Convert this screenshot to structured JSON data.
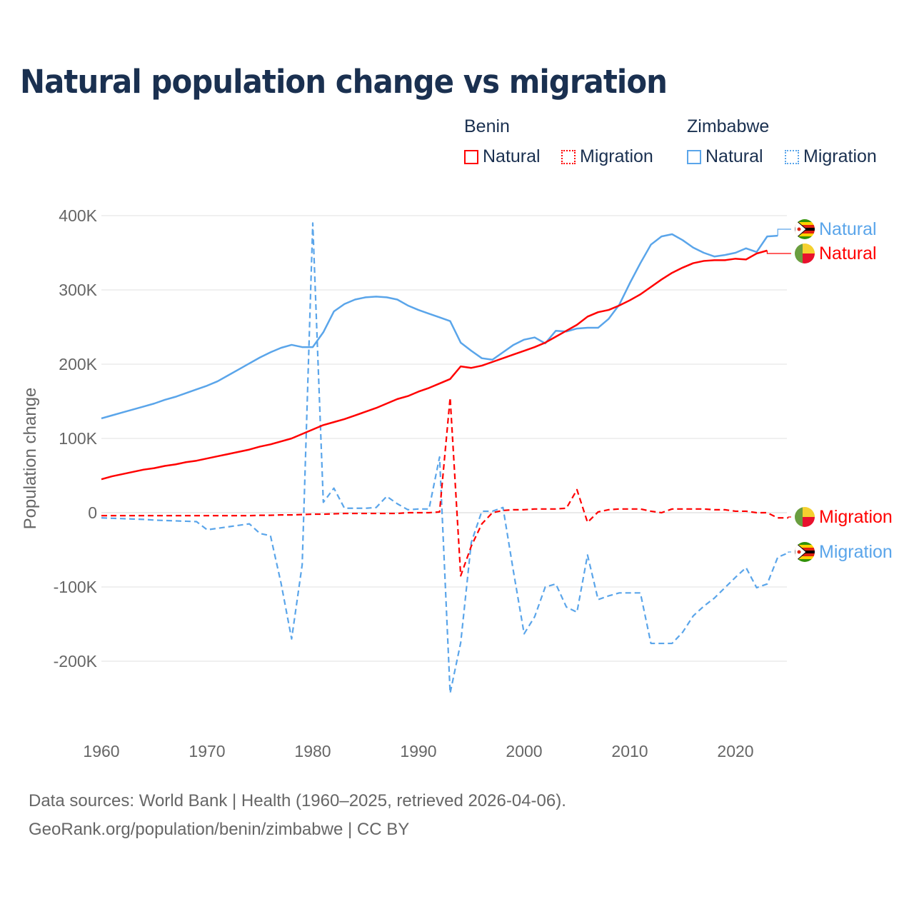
{
  "title": "Natural population change vs migration",
  "legend": {
    "groups": [
      {
        "name": "Benin",
        "items": [
          {
            "label": "Natural",
            "style": "solid",
            "color": "#ff0000"
          },
          {
            "label": "Migration",
            "style": "dotted",
            "color": "#ff0000"
          }
        ]
      },
      {
        "name": "Zimbabwe",
        "items": [
          {
            "label": "Natural",
            "style": "solid",
            "color": "#5aa5ea"
          },
          {
            "label": "Migration",
            "style": "dotted",
            "color": "#5aa5ea"
          }
        ]
      }
    ]
  },
  "footer": {
    "line1": "Data sources: World Bank | Health (1960–2025, retrieved 2026-04-06).",
    "line2": "GeoRank.org/population/benin/zimbabwe | CC BY"
  },
  "chart_data": {
    "type": "line",
    "title": "Natural population change vs migration",
    "xlabel": "",
    "ylabel": "Population change",
    "xlim": [
      1960,
      2025
    ],
    "ylim": [
      -280000,
      400000
    ],
    "x_ticks": [
      1960,
      1970,
      1980,
      1990,
      2000,
      2010,
      2020
    ],
    "x_tick_labels": [
      "1960",
      "1970",
      "1980",
      "1990",
      "2000",
      "2010",
      "2020"
    ],
    "y_ticks": [
      400000,
      300000,
      200000,
      100000,
      0,
      -100000,
      -200000
    ],
    "y_tick_labels": [
      "400K",
      "300K",
      "200K",
      "100K",
      "0",
      "-100K",
      "-200K"
    ],
    "grid": true,
    "legend_position": "top-right",
    "series": [
      {
        "name": "Benin Natural",
        "end_label": "Natural",
        "country": "Benin",
        "color": "#ff0000",
        "dash": false,
        "start_year": 1960,
        "values": [
          45,
          49,
          52,
          55,
          58,
          60,
          63,
          65,
          68,
          70,
          73,
          76,
          79,
          82,
          85,
          89,
          92,
          96,
          100,
          106,
          112,
          118,
          122,
          126,
          131,
          136,
          141,
          147,
          153,
          157,
          163,
          168,
          174,
          180,
          197,
          195,
          198,
          203,
          208,
          213,
          218,
          223,
          229,
          237,
          245,
          253,
          264,
          270,
          273,
          279,
          286,
          294,
          304,
          314,
          323,
          330,
          336,
          339,
          340,
          340,
          342,
          341,
          349,
          353
        ]
      },
      {
        "name": "Zimbabwe Natural",
        "end_label": "Natural",
        "country": "Zimbabwe",
        "color": "#5aa5ea",
        "dash": false,
        "start_year": 1960,
        "values": [
          127,
          131,
          135,
          139,
          143,
          147,
          152,
          156,
          161,
          166,
          171,
          177,
          185,
          193,
          201,
          209,
          216,
          222,
          226,
          223,
          223,
          243,
          271,
          281,
          287,
          290,
          291,
          290,
          287,
          279,
          273,
          268,
          263,
          258,
          229,
          218,
          208,
          206,
          216,
          226,
          233,
          236,
          228,
          245,
          244,
          248,
          249,
          249,
          261,
          280,
          309,
          336,
          361,
          372,
          375,
          367,
          357,
          350,
          345,
          347,
          350,
          356,
          351,
          372,
          373
        ]
      },
      {
        "name": "Benin Migration",
        "end_label": "Migration",
        "country": "Benin",
        "color": "#ff0000",
        "dash": true,
        "start_year": 1960,
        "values": [
          -4,
          -4,
          -4,
          -4,
          -4,
          -4,
          -4,
          -4,
          -4,
          -4,
          -4,
          -4,
          -4,
          -4,
          -4,
          -3.5,
          -3.5,
          -3,
          -3,
          -2.5,
          -2,
          -2,
          -1.5,
          -1,
          -1,
          -1,
          -1,
          -1,
          -1,
          0,
          0,
          0,
          1,
          155,
          -85,
          -45,
          -15,
          0,
          3,
          4,
          4,
          5,
          5,
          5,
          6,
          31,
          -13,
          1,
          4,
          5,
          5,
          5,
          2,
          0,
          5,
          5,
          5,
          5,
          4,
          4,
          2,
          2,
          0,
          0,
          -7,
          -7
        ]
      },
      {
        "name": "Zimbabwe Migration",
        "end_label": "Migration",
        "country": "Zimbabwe",
        "color": "#5aa5ea",
        "dash": true,
        "start_year": 1960,
        "values": [
          -7,
          -7.5,
          -8,
          -8.5,
          -9,
          -10,
          -10.5,
          -11,
          -11.5,
          -12,
          -23,
          -21,
          -19,
          -17,
          -15,
          -28,
          -31,
          -95,
          -170,
          -70,
          390,
          14,
          33,
          6,
          6,
          6,
          7,
          22,
          12,
          4,
          5,
          5,
          75,
          -243,
          -175,
          -40,
          2,
          2,
          7,
          -80,
          -163,
          -140,
          -100,
          -96,
          -127,
          -134,
          -57,
          -117,
          -112,
          -108,
          -108,
          -108,
          -176,
          -176,
          -176,
          -161,
          -139,
          -126,
          -115,
          -101,
          -87,
          -74,
          -101,
          -96,
          -60,
          -54
        ]
      }
    ],
    "value_unit_multiplier": 1000
  }
}
